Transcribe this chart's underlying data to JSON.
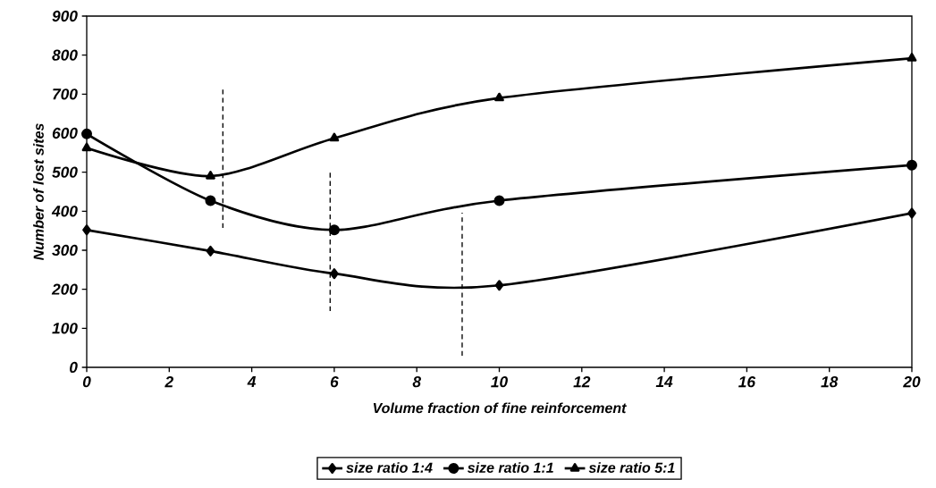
{
  "chart_data": {
    "type": "line",
    "xlabel": "Volume fraction of fine reinforcement",
    "ylabel": "Number of lost sites",
    "xlim": [
      0,
      20
    ],
    "xticks": [
      0,
      2,
      4,
      6,
      8,
      10,
      12,
      14,
      16,
      18,
      20
    ],
    "ylim": [
      0,
      900
    ],
    "yticks": [
      0,
      100,
      200,
      300,
      400,
      500,
      600,
      700,
      800,
      900
    ],
    "legend": "bottom",
    "grid": false,
    "x": [
      0,
      3,
      6,
      10,
      20
    ],
    "series": [
      {
        "name": "size ratio 1:4",
        "color": "#000000",
        "marker": "diamond",
        "values": [
          352,
          298,
          240,
          210,
          395
        ]
      },
      {
        "name": "size ratio 1:1",
        "color": "#000000",
        "marker": "circle",
        "values": [
          598,
          427,
          352,
          427,
          518
        ]
      },
      {
        "name": "size ratio 5:1",
        "color": "#000000",
        "marker": "triangle",
        "values": [
          562,
          490,
          587,
          690,
          792
        ]
      },
      {
        "color": "#000000",
        "marker": "none",
        "line_style": "dashed",
        "x": [
          3.3,
          3.3
        ],
        "values": [
          357,
          719
        ]
      },
      {
        "color": "#000000",
        "marker": "none",
        "line_style": "dashed",
        "x": [
          5.9,
          5.9
        ],
        "values": [
          144,
          501
        ]
      },
      {
        "color": "#000000",
        "marker": "none",
        "line_style": "dashed",
        "x": [
          9.1,
          9.1
        ],
        "values": [
          30,
          396
        ]
      }
    ]
  }
}
